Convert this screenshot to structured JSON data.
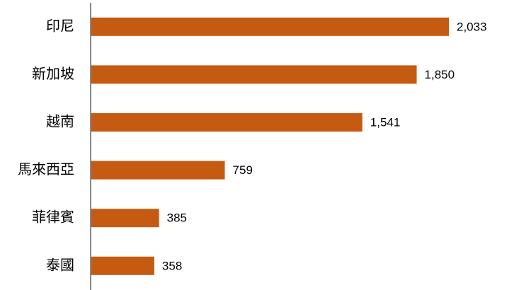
{
  "chart_data": {
    "type": "bar",
    "orientation": "horizontal",
    "categories": [
      "印尼",
      "新加坡",
      "越南",
      "馬來西亞",
      "菲律賓",
      "泰國"
    ],
    "values": [
      2033,
      1850,
      1541,
      759,
      385,
      358
    ],
    "value_labels": [
      "2,033",
      "1,850",
      "1,541",
      "759",
      "385",
      "358"
    ],
    "color": "#c55a11"
  }
}
